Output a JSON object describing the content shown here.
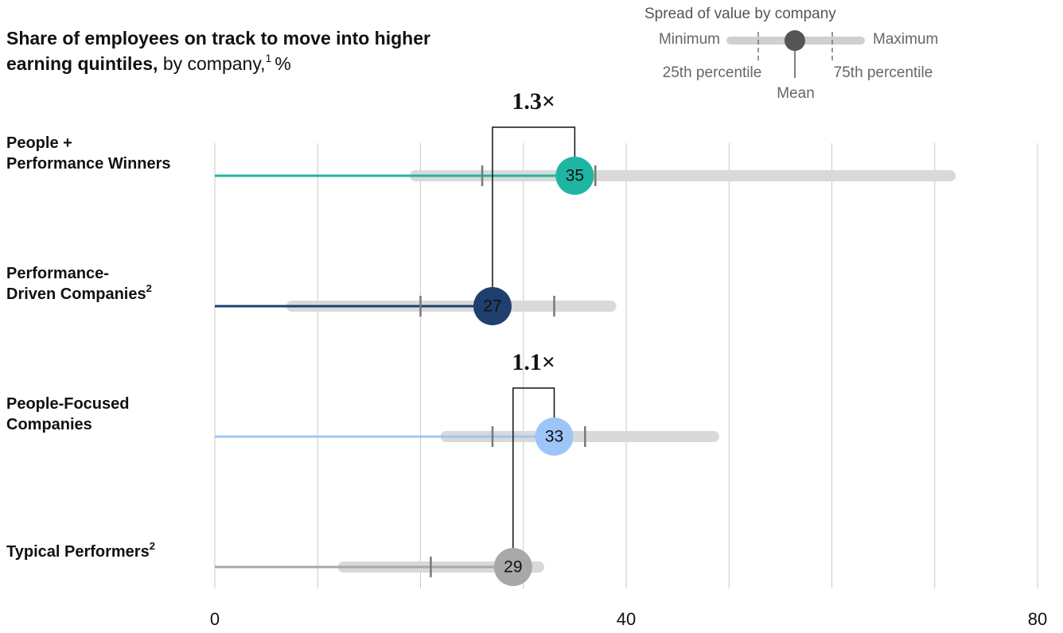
{
  "chart_data": {
    "type": "range_dot",
    "title_lines": [
      "Share of employees on track to move into higher",
      "earning quintiles,"
    ],
    "title_rest": "by company,",
    "title_note": "1",
    "unit": "%",
    "legend": {
      "title": "Spread of value by company",
      "min": "Minimum",
      "max": "Maximum",
      "q1": "25th percentile",
      "q3": "75th percentile",
      "mean": "Mean"
    },
    "xlim": [
      0,
      80
    ],
    "xticks": [
      0,
      40,
      80
    ],
    "grid_ticks": [
      0,
      10,
      20,
      30,
      40,
      50,
      60,
      70,
      80
    ],
    "grid": true,
    "series": [
      {
        "name": [
          "People +",
          "Performance Winners"
        ],
        "note": null,
        "color": "#1fb5a3",
        "min": 19.5,
        "q1": 26,
        "mean": 35,
        "q3": 37,
        "max": 71.5
      },
      {
        "name": [
          "Performance-",
          "Driven Companies"
        ],
        "note": "2",
        "color": "#1f3f6e",
        "min": 7.5,
        "q1": 20,
        "mean": 27,
        "q3": 33,
        "max": 38.5
      },
      {
        "name": [
          "People-Focused",
          "Companies"
        ],
        "note": null,
        "color": "#9ec5f8",
        "min": 22.5,
        "q1": 27,
        "mean": 33,
        "q3": 36,
        "max": 48.5
      },
      {
        "name": [
          "Typical Performers"
        ],
        "note": "2",
        "color": "#a8a8a8",
        "min": 12.5,
        "q1": 21,
        "mean": 29,
        "q3": null,
        "max": 31.5
      }
    ],
    "annotations": [
      {
        "text": "1.3×",
        "compare": [
          0,
          1
        ]
      },
      {
        "text": "1.1×",
        "compare": [
          2,
          3
        ]
      }
    ]
  }
}
